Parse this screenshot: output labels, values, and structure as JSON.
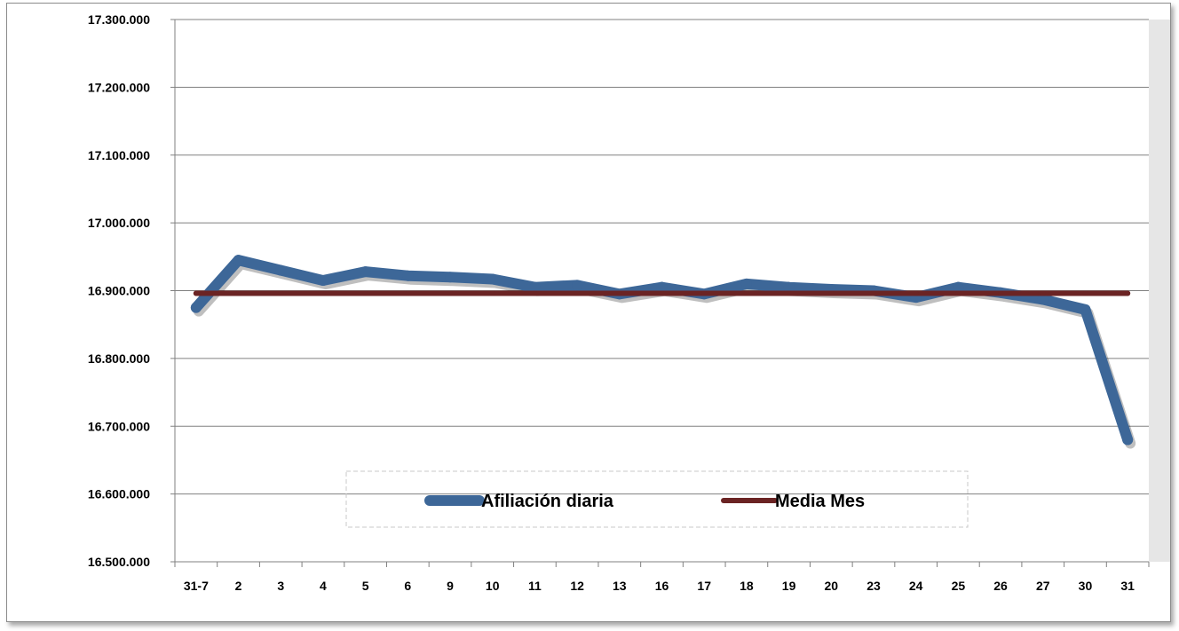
{
  "chart_data": {
    "type": "line",
    "title": "",
    "xlabel": "",
    "ylabel": "",
    "categories": [
      "31-7",
      "2",
      "3",
      "4",
      "5",
      "6",
      "9",
      "10",
      "11",
      "12",
      "13",
      "16",
      "17",
      "18",
      "19",
      "20",
      "23",
      "24",
      "25",
      "26",
      "27",
      "30",
      "31"
    ],
    "ylim": [
      16500000,
      17300000
    ],
    "yticks": [
      16500000,
      16600000,
      16700000,
      16800000,
      16900000,
      17000000,
      17100000,
      17200000,
      17300000
    ],
    "ytick_labels": [
      "16.500.000",
      "16.600.000",
      "16.700.000",
      "16.800.000",
      "16.900.000",
      "17.000.000",
      "17.100.000",
      "17.200.000",
      "17.300.000"
    ],
    "grid": true,
    "legend_position": "bottom-center",
    "series": [
      {
        "name": "Afiliación diaria",
        "color": "#3D6798",
        "values": [
          16875000,
          16945000,
          16930000,
          16915000,
          16928000,
          16922000,
          16920000,
          16917000,
          16905000,
          16908000,
          16895000,
          16905000,
          16895000,
          16910000,
          16905000,
          16902000,
          16900000,
          16890000,
          16905000,
          16897000,
          16887000,
          16872000,
          16680000
        ]
      },
      {
        "name": "Media Mes",
        "color": "#6B2424",
        "values": [
          16896000,
          16896000,
          16896000,
          16896000,
          16896000,
          16896000,
          16896000,
          16896000,
          16896000,
          16896000,
          16896000,
          16896000,
          16896000,
          16896000,
          16896000,
          16896000,
          16896000,
          16896000,
          16896000,
          16896000,
          16896000,
          16896000,
          16896000
        ]
      }
    ]
  }
}
